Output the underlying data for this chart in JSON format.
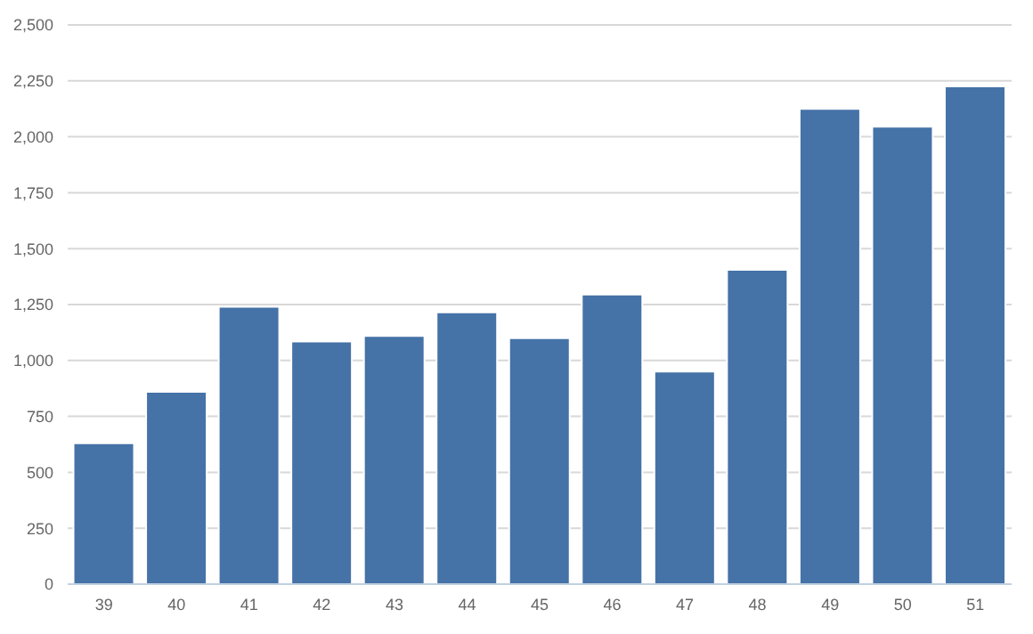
{
  "chart_data": {
    "type": "bar",
    "categories": [
      "39",
      "40",
      "41",
      "42",
      "43",
      "44",
      "45",
      "46",
      "47",
      "48",
      "49",
      "50",
      "51"
    ],
    "values": [
      630,
      860,
      1240,
      1085,
      1110,
      1215,
      1100,
      1295,
      950,
      1405,
      2125,
      2045,
      2225
    ],
    "color": "#4572a7",
    "ylim": [
      0,
      2500
    ],
    "yticks": [
      {
        "value": 0,
        "label": "0"
      },
      {
        "value": 250,
        "label": "250"
      },
      {
        "value": 500,
        "label": "500"
      },
      {
        "value": 750,
        "label": "750"
      },
      {
        "value": 1000,
        "label": "1,000"
      },
      {
        "value": 1250,
        "label": "1,250"
      },
      {
        "value": 1500,
        "label": "1,500"
      },
      {
        "value": 1750,
        "label": "1,750"
      },
      {
        "value": 2000,
        "label": "2,000"
      },
      {
        "value": 2250,
        "label": "2,250"
      },
      {
        "value": 2500,
        "label": "2,500"
      }
    ],
    "grid": "y",
    "legend": false
  }
}
